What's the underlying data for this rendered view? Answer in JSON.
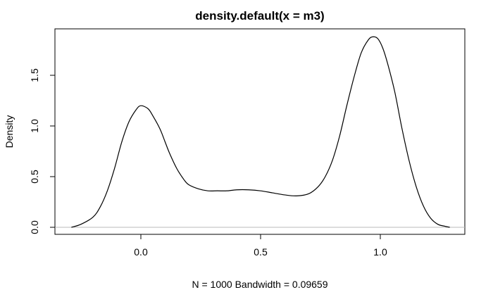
{
  "chart_data": {
    "type": "line",
    "title": "density.default(x = m3)",
    "xlabel": "N = 1000   Bandwidth = 0.09659",
    "ylabel": "Density",
    "xlim": [
      -0.3,
      1.3
    ],
    "ylim": [
      0,
      1.9
    ],
    "x_ticks": [
      0.0,
      0.5,
      1.0
    ],
    "x_tick_labels": [
      "0.0",
      "0.5",
      "1.0"
    ],
    "y_ticks": [
      0.0,
      0.5,
      1.0,
      1.5
    ],
    "y_tick_labels": [
      "0.0",
      "0.5",
      "1.0",
      "1.5"
    ],
    "grid": false,
    "series": [
      {
        "x": [
          -0.29,
          -0.25,
          -0.2,
          -0.17,
          -0.14,
          -0.11,
          -0.08,
          -0.05,
          -0.02,
          0.0,
          0.03,
          0.05,
          0.08,
          0.1,
          0.12,
          0.15,
          0.18,
          0.2,
          0.24,
          0.28,
          0.32,
          0.36,
          0.4,
          0.45,
          0.5,
          0.55,
          0.6,
          0.65,
          0.7,
          0.74,
          0.77,
          0.8,
          0.83,
          0.86,
          0.89,
          0.92,
          0.95,
          0.97,
          0.99,
          1.01,
          1.03,
          1.06,
          1.09,
          1.12,
          1.15,
          1.18,
          1.21,
          1.24,
          1.27,
          1.29
        ],
        "y": [
          0.0,
          0.03,
          0.1,
          0.2,
          0.36,
          0.58,
          0.84,
          1.04,
          1.16,
          1.2,
          1.17,
          1.1,
          0.97,
          0.85,
          0.73,
          0.58,
          0.47,
          0.42,
          0.38,
          0.36,
          0.36,
          0.36,
          0.37,
          0.37,
          0.36,
          0.34,
          0.32,
          0.31,
          0.33,
          0.4,
          0.5,
          0.66,
          0.9,
          1.2,
          1.48,
          1.72,
          1.85,
          1.88,
          1.86,
          1.77,
          1.62,
          1.34,
          0.98,
          0.66,
          0.4,
          0.21,
          0.09,
          0.03,
          0.01,
          0.0
        ]
      }
    ]
  }
}
